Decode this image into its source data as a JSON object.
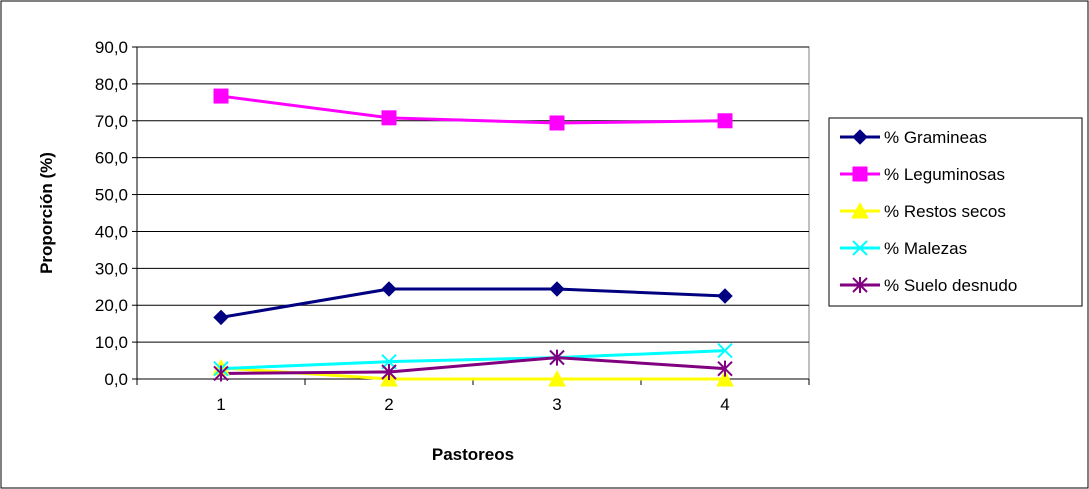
{
  "chart_data": {
    "type": "line",
    "title": "",
    "xlabel": "Pastoreos",
    "ylabel": "Proporción (%)",
    "categories": [
      "1",
      "2",
      "3",
      "4"
    ],
    "ylim": [
      0,
      90
    ],
    "yticks": [
      0,
      10,
      20,
      30,
      40,
      50,
      60,
      70,
      80,
      90
    ],
    "ytick_labels": [
      "0,0",
      "10,0",
      "20,0",
      "30,0",
      "40,0",
      "50,0",
      "60,0",
      "70,0",
      "80,0",
      "90,0"
    ],
    "grid": true,
    "legend_position": "right",
    "series": [
      {
        "name": "% Gramineas",
        "values": [
          16.7,
          24.4,
          24.4,
          22.5
        ],
        "color": "#000080",
        "marker": "diamond"
      },
      {
        "name": "% Leguminosas",
        "values": [
          76.7,
          70.8,
          69.4,
          70.0
        ],
        "color": "#FF00FF",
        "marker": "square"
      },
      {
        "name": "% Restos secos",
        "values": [
          3.0,
          0.0,
          0.0,
          0.0
        ],
        "color": "#FFFF00",
        "marker": "triangle"
      },
      {
        "name": "% Malezas",
        "values": [
          2.8,
          4.7,
          5.8,
          7.7
        ],
        "color": "#00FFFF",
        "marker": "x"
      },
      {
        "name": "% Suelo desnudo",
        "values": [
          1.5,
          1.9,
          5.8,
          2.8
        ],
        "color": "#800080",
        "marker": "star"
      }
    ]
  }
}
